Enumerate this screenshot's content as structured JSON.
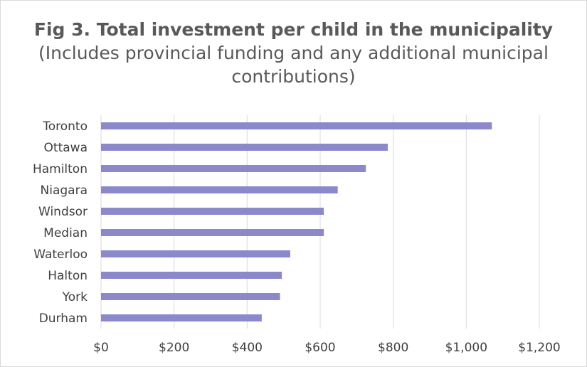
{
  "chart_data": {
    "type": "bar",
    "orientation": "horizontal",
    "title_bold": "Fig 3. Total investment per child in the municipality",
    "title_regular": "(Includes provincial funding and any additional municipal contributions)",
    "categories": [
      "Toronto",
      "Ottawa",
      "Hamilton",
      "Niagara",
      "Windsor",
      "Median",
      "Waterloo",
      "Halton",
      "York",
      "Durham"
    ],
    "values": [
      1070,
      785,
      725,
      648,
      610,
      610,
      518,
      495,
      490,
      440
    ],
    "xlim": [
      0,
      1200
    ],
    "x_ticks": [
      0,
      200,
      400,
      600,
      800,
      1000,
      1200
    ],
    "x_tick_labels": [
      "$0",
      "$200",
      "$400",
      "$600",
      "$800",
      "$1,000",
      "$1,200"
    ],
    "xlabel": "",
    "ylabel": "",
    "grid": "vertical",
    "legend": "none",
    "bar_color": "#8b89cc",
    "grid_color": "#d9d9d9"
  }
}
